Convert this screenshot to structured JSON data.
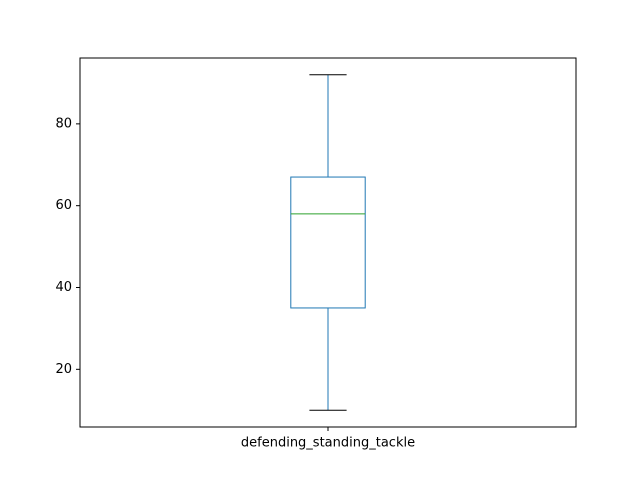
{
  "chart_data": {
    "type": "box",
    "title": "",
    "xlabel": "",
    "ylabel": "",
    "categories": [
      "defending_standing_tackle"
    ],
    "boxes": [
      {
        "name": "defending_standing_tackle",
        "whisker_low": 10,
        "q1": 35,
        "median": 58,
        "q3": 67,
        "whisker_high": 92
      }
    ],
    "ylim": [
      5.9,
      96.1
    ],
    "yticks": [
      20,
      40,
      60,
      80
    ],
    "grid": false,
    "colors": {
      "box": "#1f77b4",
      "median": "#2ca02c",
      "cap": "#000000",
      "axes": "#000000"
    }
  }
}
